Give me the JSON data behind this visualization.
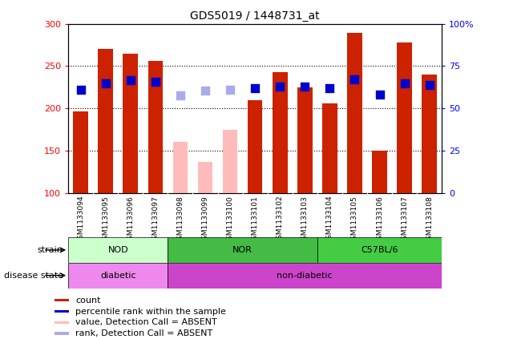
{
  "title": "GDS5019 / 1448731_at",
  "samples": [
    "GSM1133094",
    "GSM1133095",
    "GSM1133096",
    "GSM1133097",
    "GSM1133098",
    "GSM1133099",
    "GSM1133100",
    "GSM1133101",
    "GSM1133102",
    "GSM1133103",
    "GSM1133104",
    "GSM1133105",
    "GSM1133106",
    "GSM1133107",
    "GSM1133108"
  ],
  "counts": [
    197,
    270,
    265,
    256,
    null,
    null,
    null,
    210,
    243,
    225,
    206,
    289,
    150,
    278,
    240
  ],
  "absent_values": [
    null,
    null,
    null,
    null,
    161,
    137,
    175,
    null,
    null,
    null,
    null,
    null,
    null,
    null,
    null
  ],
  "percentile_ranks": [
    222,
    230,
    233,
    232,
    null,
    null,
    null,
    224,
    226,
    226,
    224,
    234,
    216,
    230,
    228
  ],
  "absent_ranks": [
    null,
    null,
    null,
    null,
    215,
    221,
    222,
    null,
    null,
    null,
    null,
    null,
    null,
    null,
    null
  ],
  "ymin": 100,
  "ymax": 300,
  "yticks_left": [
    100,
    150,
    200,
    250,
    300
  ],
  "bar_color_present": "#cc2200",
  "bar_color_absent": "#ffbbbb",
  "rank_color_present": "#0000cc",
  "rank_color_absent": "#aaaaee",
  "nod_color": "#ccffcc",
  "nor_color": "#44bb44",
  "c57_color": "#44cc44",
  "disease_color_1": "#ee88ee",
  "disease_color_2": "#cc44cc",
  "strain_label": "strain",
  "disease_label": "disease state",
  "legend": [
    {
      "label": "count",
      "color": "#cc2200"
    },
    {
      "label": "percentile rank within the sample",
      "color": "#0000cc"
    },
    {
      "label": "value, Detection Call = ABSENT",
      "color": "#ffbbbb"
    },
    {
      "label": "rank, Detection Call = ABSENT",
      "color": "#aaaaee"
    }
  ],
  "strain_boundaries": [
    0,
    4,
    10,
    15
  ],
  "strain_labels": [
    "NOD",
    "NOR",
    "C57BL/6"
  ],
  "strain_colors": [
    "#ccffcc",
    "#44bb44",
    "#44cc44"
  ],
  "disease_boundaries": [
    0,
    4,
    15
  ],
  "disease_labels": [
    "diabetic",
    "non-diabetic"
  ],
  "disease_colors": [
    "#ee88ee",
    "#cc44cc"
  ]
}
